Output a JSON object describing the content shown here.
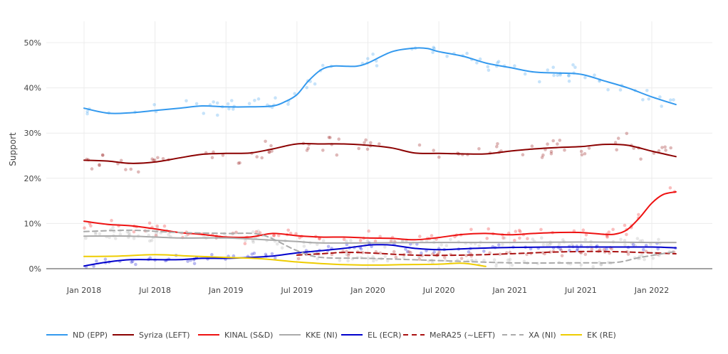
{
  "chart_data": {
    "type": "line",
    "title": "",
    "xlabel": "",
    "ylabel": "Support",
    "ylim": [
      0,
      55
    ],
    "xlim": [
      2017.92,
      2022.42
    ],
    "grid": true,
    "legend_position": "bottom",
    "x_ticks": [
      {
        "value": 2018.0,
        "label": "Jan 2018"
      },
      {
        "value": 2018.5,
        "label": "Jul 2018"
      },
      {
        "value": 2019.0,
        "label": "Jan 2019"
      },
      {
        "value": 2019.5,
        "label": "Jul 2019"
      },
      {
        "value": 2020.0,
        "label": "Jan 2020"
      },
      {
        "value": 2020.5,
        "label": "Jul 2020"
      },
      {
        "value": 2021.0,
        "label": "Jan 2021"
      },
      {
        "value": 2021.5,
        "label": "Jul 2021"
      },
      {
        "value": 2022.0,
        "label": "Jan 2022"
      }
    ],
    "y_ticks": [
      {
        "value": 0,
        "label": "0%"
      },
      {
        "value": 10,
        "label": "10%"
      },
      {
        "value": 20,
        "label": "20%"
      },
      {
        "value": 30,
        "label": "30%"
      },
      {
        "value": 40,
        "label": "40%"
      },
      {
        "value": 50,
        "label": "50%"
      }
    ],
    "series": [
      {
        "name": "ND (EPP)",
        "color": "#3399ee",
        "dash": "solid",
        "scatter": true,
        "spread": 2.5,
        "x": [
          2018.0,
          2018.17,
          2018.33,
          2018.5,
          2018.67,
          2018.83,
          2019.0,
          2019.17,
          2019.33,
          2019.42,
          2019.5,
          2019.58,
          2019.67,
          2019.75,
          2019.83,
          2019.92,
          2020.0,
          2020.17,
          2020.33,
          2020.42,
          2020.5,
          2020.67,
          2020.83,
          2021.0,
          2021.17,
          2021.33,
          2021.5,
          2021.67,
          2021.83,
          2022.0,
          2022.17
        ],
        "y": [
          35.5,
          34.4,
          34.5,
          35.0,
          35.5,
          36.0,
          35.8,
          35.8,
          36.0,
          37.0,
          38.5,
          41.5,
          44.0,
          44.8,
          44.8,
          44.8,
          45.5,
          48.0,
          48.8,
          48.7,
          48.0,
          47.0,
          45.5,
          44.5,
          43.5,
          43.3,
          43.0,
          41.5,
          40.0,
          38.0,
          36.3
        ]
      },
      {
        "name": "Syriza (LEFT)",
        "color": "#8b0000",
        "dash": "solid",
        "scatter": true,
        "spread": 2.8,
        "x": [
          2018.0,
          2018.17,
          2018.33,
          2018.5,
          2018.67,
          2018.83,
          2019.0,
          2019.17,
          2019.33,
          2019.5,
          2019.67,
          2019.83,
          2020.0,
          2020.17,
          2020.33,
          2020.5,
          2020.67,
          2020.83,
          2021.0,
          2021.17,
          2021.33,
          2021.5,
          2021.67,
          2021.83,
          2022.0,
          2022.17
        ],
        "y": [
          24.0,
          23.8,
          23.3,
          23.6,
          24.5,
          25.3,
          25.5,
          25.6,
          26.5,
          27.6,
          27.6,
          27.6,
          27.3,
          26.7,
          25.6,
          25.5,
          25.4,
          25.4,
          26.0,
          26.5,
          26.8,
          27.0,
          27.5,
          27.3,
          26.0,
          24.8
        ]
      },
      {
        "name": "KINAL (S&D)",
        "color": "#ee1111",
        "dash": "solid",
        "scatter": true,
        "spread": 1.6,
        "x": [
          2018.0,
          2018.17,
          2018.33,
          2018.5,
          2018.67,
          2018.83,
          2019.0,
          2019.17,
          2019.33,
          2019.5,
          2019.67,
          2019.83,
          2020.0,
          2020.17,
          2020.33,
          2020.5,
          2020.67,
          2020.83,
          2021.0,
          2021.17,
          2021.33,
          2021.5,
          2021.67,
          2021.75,
          2021.83,
          2021.92,
          2022.0,
          2022.08,
          2022.17
        ],
        "y": [
          10.5,
          9.8,
          9.5,
          8.8,
          8.0,
          7.6,
          7.0,
          7.0,
          7.8,
          7.3,
          7.0,
          7.0,
          6.8,
          6.7,
          6.4,
          6.9,
          7.6,
          7.8,
          7.5,
          7.8,
          8.0,
          8.0,
          7.6,
          7.7,
          8.7,
          11.5,
          14.5,
          16.4,
          17.0
        ]
      },
      {
        "name": "KKE (NI)",
        "color": "#aaaaaa",
        "dash": "solid",
        "scatter": true,
        "spread": 1.2,
        "x": [
          2018.0,
          2018.33,
          2018.67,
          2019.0,
          2019.33,
          2019.5,
          2019.67,
          2020.0,
          2020.5,
          2021.0,
          2021.5,
          2022.0,
          2022.17
        ],
        "y": [
          7.2,
          7.2,
          6.8,
          6.8,
          6.3,
          6.0,
          5.7,
          5.7,
          5.8,
          5.8,
          5.9,
          5.8,
          5.8
        ]
      },
      {
        "name": "EL (ECR)",
        "color": "#0000cc",
        "dash": "solid",
        "scatter": true,
        "spread": 1.2,
        "x": [
          2018.0,
          2018.17,
          2018.33,
          2018.5,
          2018.67,
          2018.83,
          2019.0,
          2019.17,
          2019.33,
          2019.5,
          2019.67,
          2019.83,
          2020.0,
          2020.08,
          2020.17,
          2020.33,
          2020.5,
          2020.75,
          2021.0,
          2021.33,
          2021.67,
          2022.0,
          2022.17
        ],
        "y": [
          0.6,
          1.5,
          2.0,
          2.0,
          2.0,
          2.3,
          2.3,
          2.5,
          2.8,
          3.5,
          4.0,
          4.5,
          5.2,
          5.3,
          5.2,
          4.5,
          4.2,
          4.5,
          4.7,
          4.8,
          4.8,
          4.8,
          4.6
        ]
      },
      {
        "name": "MeRA25 (~LEFT)",
        "color": "#aa1111",
        "dash": "dashed",
        "scatter": true,
        "spread": 1.0,
        "x": [
          2019.5,
          2019.67,
          2019.83,
          2020.0,
          2020.33,
          2020.67,
          2021.0,
          2021.33,
          2021.67,
          2022.0,
          2022.17
        ],
        "y": [
          3.0,
          3.3,
          3.6,
          3.5,
          3.0,
          3.0,
          3.3,
          3.7,
          3.8,
          3.5,
          3.3
        ]
      },
      {
        "name": "XA (NI)",
        "color": "#aaaaaa",
        "dash": "dashed",
        "scatter": true,
        "spread": 1.0,
        "x": [
          2018.0,
          2018.33,
          2018.67,
          2019.0,
          2019.25,
          2019.5,
          2019.67,
          2020.0,
          2020.5,
          2021.0,
          2021.5,
          2021.75,
          2021.92,
          2022.17
        ],
        "y": [
          8.2,
          8.5,
          8.0,
          7.8,
          7.5,
          4.0,
          2.5,
          2.3,
          1.8,
          1.3,
          1.3,
          1.4,
          2.5,
          3.8
        ]
      },
      {
        "name": "EK (RE)",
        "color": "#eecc00",
        "dash": "solid",
        "scatter": false,
        "spread": 0.8,
        "x": [
          2018.0,
          2018.25,
          2018.5,
          2018.75,
          2019.0,
          2019.25,
          2019.5,
          2019.75,
          2020.0,
          2020.25,
          2020.5,
          2020.67,
          2020.83
        ],
        "y": [
          2.7,
          2.8,
          3.1,
          2.8,
          2.5,
          2.2,
          1.5,
          1.0,
          0.8,
          0.9,
          1.0,
          1.2,
          0.5
        ]
      }
    ]
  }
}
